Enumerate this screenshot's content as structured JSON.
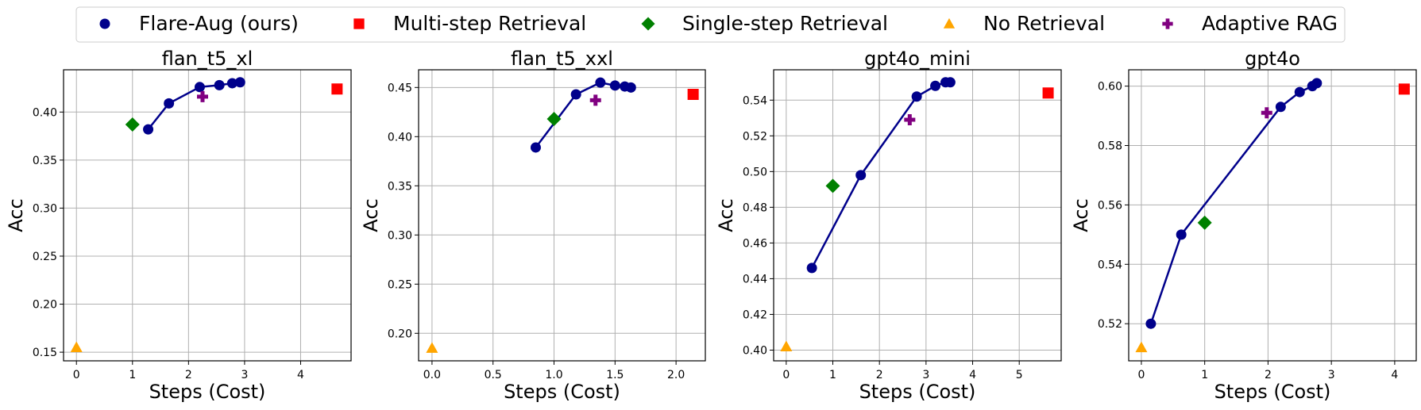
{
  "legend": {
    "items": [
      {
        "label": "Flare-Aug (ours)",
        "marker": "circle",
        "color": "#00008B"
      },
      {
        "label": "Multi-step Retrieval",
        "marker": "square",
        "color": "#FF0000"
      },
      {
        "label": "Single-step Retrieval",
        "marker": "diamond",
        "color": "#008000"
      },
      {
        "label": "No Retrieval",
        "marker": "triangle",
        "color": "#FFA500"
      },
      {
        "label": "Adaptive RAG",
        "marker": "plus",
        "color": "#800080"
      }
    ]
  },
  "chart_data": [
    {
      "type": "scatter",
      "title": "flan_t5_xl",
      "xlabel": "Steps (Cost)",
      "ylabel": "Acc",
      "xlim": [
        -0.23,
        4.9
      ],
      "ylim": [
        0.141,
        0.444
      ],
      "xticks": [
        0,
        1,
        2,
        3,
        4
      ],
      "xtick_labels": [
        "0",
        "1",
        "2",
        "3",
        "4"
      ],
      "yticks": [
        0.15,
        0.2,
        0.25,
        0.3,
        0.35,
        0.4
      ],
      "ytick_labels": [
        "0.15",
        "0.20",
        "0.25",
        "0.30",
        "0.35",
        "0.40"
      ],
      "grid": true,
      "series": [
        {
          "name": "Flare-Aug (ours)",
          "marker": "circle",
          "color": "#00008B",
          "line": true,
          "x": [
            1.28,
            1.65,
            2.2,
            2.55,
            2.78,
            2.92
          ],
          "y": [
            0.382,
            0.409,
            0.426,
            0.428,
            0.43,
            0.431
          ]
        },
        {
          "name": "Multi-step Retrieval",
          "marker": "square",
          "color": "#FF0000",
          "x": [
            4.65
          ],
          "y": [
            0.424
          ]
        },
        {
          "name": "Single-step Retrieval",
          "marker": "diamond",
          "color": "#008000",
          "x": [
            1.0
          ],
          "y": [
            0.387
          ]
        },
        {
          "name": "No Retrieval",
          "marker": "triangle",
          "color": "#FFA500",
          "x": [
            0.0
          ],
          "y": [
            0.155
          ]
        },
        {
          "name": "Adaptive RAG",
          "marker": "plus",
          "color": "#800080",
          "x": [
            2.25
          ],
          "y": [
            0.416
          ]
        }
      ]
    },
    {
      "type": "scatter",
      "title": "flan_t5_xxl",
      "xlabel": "Steps (Cost)",
      "ylabel": "Acc",
      "xlim": [
        -0.11,
        2.24
      ],
      "ylim": [
        0.172,
        0.468
      ],
      "xticks": [
        0,
        0.5,
        1.0,
        1.5,
        2.0
      ],
      "xtick_labels": [
        "0.0",
        "0.5",
        "1.0",
        "1.5",
        "2.0"
      ],
      "yticks": [
        0.2,
        0.25,
        0.3,
        0.35,
        0.4,
        0.45
      ],
      "ytick_labels": [
        "0.20",
        "0.25",
        "0.30",
        "0.35",
        "0.40",
        "0.45"
      ],
      "grid": true,
      "series": [
        {
          "name": "Flare-Aug (ours)",
          "marker": "circle",
          "color": "#00008B",
          "line": true,
          "x": [
            0.85,
            1.18,
            1.38,
            1.5,
            1.58,
            1.63
          ],
          "y": [
            0.389,
            0.443,
            0.455,
            0.452,
            0.451,
            0.45
          ]
        },
        {
          "name": "Multi-step Retrieval",
          "marker": "square",
          "color": "#FF0000",
          "x": [
            2.14
          ],
          "y": [
            0.443
          ]
        },
        {
          "name": "Single-step Retrieval",
          "marker": "diamond",
          "color": "#008000",
          "x": [
            1.0
          ],
          "y": [
            0.418
          ]
        },
        {
          "name": "No Retrieval",
          "marker": "triangle",
          "color": "#FFA500",
          "x": [
            0.0
          ],
          "y": [
            0.185
          ]
        },
        {
          "name": "Adaptive RAG",
          "marker": "plus",
          "color": "#800080",
          "x": [
            1.34
          ],
          "y": [
            0.437
          ]
        }
      ]
    },
    {
      "type": "scatter",
      "title": "gpt4o_mini",
      "xlabel": "Steps (Cost)",
      "ylabel": "Acc",
      "xlim": [
        -0.27,
        5.9
      ],
      "ylim": [
        0.394,
        0.557
      ],
      "xticks": [
        0,
        1,
        2,
        3,
        4,
        5
      ],
      "xtick_labels": [
        "0",
        "1",
        "2",
        "3",
        "4",
        "5"
      ],
      "yticks": [
        0.4,
        0.42,
        0.44,
        0.46,
        0.48,
        0.5,
        0.52,
        0.54
      ],
      "ytick_labels": [
        "0.40",
        "0.42",
        "0.44",
        "0.46",
        "0.48",
        "0.50",
        "0.52",
        "0.54"
      ],
      "grid": true,
      "series": [
        {
          "name": "Flare-Aug (ours)",
          "marker": "circle",
          "color": "#00008B",
          "line": true,
          "x": [
            0.55,
            1.6,
            2.8,
            3.2,
            3.42,
            3.52
          ],
          "y": [
            0.446,
            0.498,
            0.542,
            0.548,
            0.55,
            0.55
          ]
        },
        {
          "name": "Multi-step Retrieval",
          "marker": "square",
          "color": "#FF0000",
          "x": [
            5.62
          ],
          "y": [
            0.544
          ]
        },
        {
          "name": "Single-step Retrieval",
          "marker": "diamond",
          "color": "#008000",
          "x": [
            1.0
          ],
          "y": [
            0.492
          ]
        },
        {
          "name": "No Retrieval",
          "marker": "triangle",
          "color": "#FFA500",
          "x": [
            0.0
          ],
          "y": [
            0.402
          ]
        },
        {
          "name": "Adaptive RAG",
          "marker": "plus",
          "color": "#800080",
          "x": [
            2.65
          ],
          "y": [
            0.529
          ]
        }
      ]
    },
    {
      "type": "scatter",
      "title": "gpt4o",
      "xlabel": "Steps (Cost)",
      "ylabel": "Acc",
      "xlim": [
        -0.2,
        4.34
      ],
      "ylim": [
        0.5075,
        0.6055
      ],
      "xticks": [
        0,
        1,
        2,
        3,
        4
      ],
      "xtick_labels": [
        "0",
        "1",
        "2",
        "3",
        "4"
      ],
      "yticks": [
        0.52,
        0.54,
        0.56,
        0.58,
        0.6
      ],
      "ytick_labels": [
        "0.52",
        "0.54",
        "0.56",
        "0.58",
        "0.60"
      ],
      "grid": true,
      "series": [
        {
          "name": "Flare-Aug (ours)",
          "marker": "circle",
          "color": "#00008B",
          "line": true,
          "x": [
            0.15,
            0.63,
            2.2,
            2.5,
            2.7,
            2.77
          ],
          "y": [
            0.52,
            0.55,
            0.593,
            0.598,
            0.6,
            0.601
          ]
        },
        {
          "name": "Multi-step Retrieval",
          "marker": "square",
          "color": "#FF0000",
          "x": [
            4.15
          ],
          "y": [
            0.599
          ]
        },
        {
          "name": "Single-step Retrieval",
          "marker": "diamond",
          "color": "#008000",
          "x": [
            1.0
          ],
          "y": [
            0.554
          ]
        },
        {
          "name": "No Retrieval",
          "marker": "triangle",
          "color": "#FFA500",
          "x": [
            0.0
          ],
          "y": [
            0.512
          ]
        },
        {
          "name": "Adaptive RAG",
          "marker": "plus",
          "color": "#800080",
          "x": [
            1.98
          ],
          "y": [
            0.591
          ]
        }
      ]
    }
  ]
}
